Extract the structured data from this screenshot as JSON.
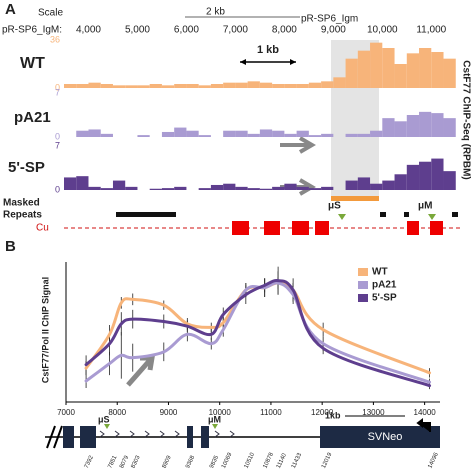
{
  "browser": {
    "label": "A",
    "scale_label": "Scale",
    "scale_bar": "2 kb",
    "assembly": "pR-SP6_Igm",
    "position_label": "pR-SP6_IgM:",
    "xlim": [
      3500,
      11750
    ],
    "xticks": [
      {
        "value": 4000,
        "label": "4,000"
      },
      {
        "value": 5000,
        "label": "5,000"
      },
      {
        "value": 6000,
        "label": "6,000"
      },
      {
        "value": 7000,
        "label": "7,000"
      },
      {
        "value": 8000,
        "label": "8,000"
      },
      {
        "value": 9000,
        "label": "9,000"
      },
      {
        "value": 10000,
        "label": "10,000"
      },
      {
        "value": 11000,
        "label": "11,000"
      }
    ],
    "ruler": "1 kb",
    "bins": [
      3500,
      3750,
      4000,
      4250,
      4500,
      4750,
      5000,
      5250,
      5500,
      5750,
      6000,
      6250,
      6500,
      6750,
      7000,
      7250,
      7500,
      7750,
      8000,
      8250,
      8500,
      8750,
      9000,
      9250,
      9500,
      9750,
      10000,
      10250,
      10500,
      10750,
      11000,
      11250,
      11500
    ],
    "tracks": [
      {
        "name": "WT",
        "color": "#f7b47a",
        "ylim": [
          0,
          36
        ],
        "yticks": [
          0,
          36
        ],
        "values": [
          3,
          3,
          4,
          3,
          2,
          2,
          2,
          3,
          2,
          3,
          3,
          2,
          3,
          4,
          4,
          5,
          4,
          3,
          3,
          3,
          4,
          5,
          8,
          22,
          28,
          34,
          30,
          18,
          26,
          30,
          27,
          22
        ]
      },
      {
        "name": "pA21",
        "color": "#a99bd2",
        "ylim": [
          0,
          7
        ],
        "yticks": [
          0,
          7
        ],
        "values": [
          0,
          1,
          1.2,
          0.5,
          0,
          0,
          0.3,
          0,
          0.8,
          1.5,
          1,
          0.3,
          0,
          1,
          1,
          0.5,
          1.2,
          1,
          0.5,
          1,
          0.3,
          0.5,
          0,
          0.5,
          0.5,
          1,
          3,
          2.5,
          3.5,
          4,
          3.8,
          3
        ]
      },
      {
        "name": "5'-SP",
        "color": "#5e3e8e",
        "ylim": [
          0,
          7
        ],
        "yticks": [
          0,
          7
        ],
        "values": [
          2,
          2.2,
          0.5,
          0.3,
          1.5,
          0.5,
          0,
          0.2,
          0.3,
          0.5,
          0,
          0.3,
          0.8,
          1,
          0.5,
          0.3,
          0.2,
          0.5,
          1,
          0.5,
          0.3,
          0.5,
          0,
          1.5,
          2,
          1,
          1.5,
          2.5,
          4,
          4.5,
          5,
          3
        ]
      }
    ],
    "masked": "Masked",
    "repeats": "Repeats",
    "mu_s": "μS",
    "mu_m": "μM",
    "gene": "Cu",
    "ylabel": "CstF77 ChIP-Seq (RPBM)"
  },
  "panel_b_label": "B",
  "chart_data": {
    "type": "line",
    "ylabel": "CstF77/Pol II ChIP Signal",
    "x": [
      7392,
      7851,
      8079,
      8303,
      8909,
      9368,
      9835,
      10069,
      10510,
      10878,
      11140,
      11433,
      12019,
      14096
    ],
    "xlim": [
      7000,
      14300
    ],
    "xticks": [
      7000,
      8000,
      9000,
      10000,
      11000,
      12000,
      13000,
      14000
    ],
    "ylim": [
      0,
      120
    ],
    "legend": "upper right",
    "series": [
      {
        "name": "WT",
        "color": "#f7b47a",
        "values": [
          29,
          58,
          85,
          88,
          83,
          67,
          64,
          68,
          96,
          98,
          102,
          96,
          62,
          25
        ],
        "errors": [
          6,
          8,
          5,
          5,
          4,
          5,
          4,
          5,
          6,
          8,
          5,
          6,
          6,
          4
        ]
      },
      {
        "name": "pA21",
        "color": "#a99bd2",
        "values": [
          18,
          33,
          40,
          38,
          43,
          58,
          50,
          62,
          96,
          98,
          102,
          92,
          50,
          17
        ],
        "errors": [
          6,
          10,
          20,
          12,
          8,
          6,
          5,
          6,
          6,
          8,
          10,
          8,
          6,
          3
        ]
      },
      {
        "name": "5'-SP",
        "color": "#5e3e8e",
        "values": [
          32,
          50,
          67,
          71,
          69,
          65,
          58,
          75,
          92,
          100,
          104,
          96,
          46,
          14
        ],
        "errors": [
          8,
          10,
          10,
          8,
          6,
          5,
          5,
          6,
          8,
          6,
          12,
          10,
          5,
          3
        ]
      }
    ]
  },
  "map": {
    "mu_s": "μS",
    "mu_m": "μM",
    "scale": "1kb",
    "cassette": "SVNeo"
  }
}
